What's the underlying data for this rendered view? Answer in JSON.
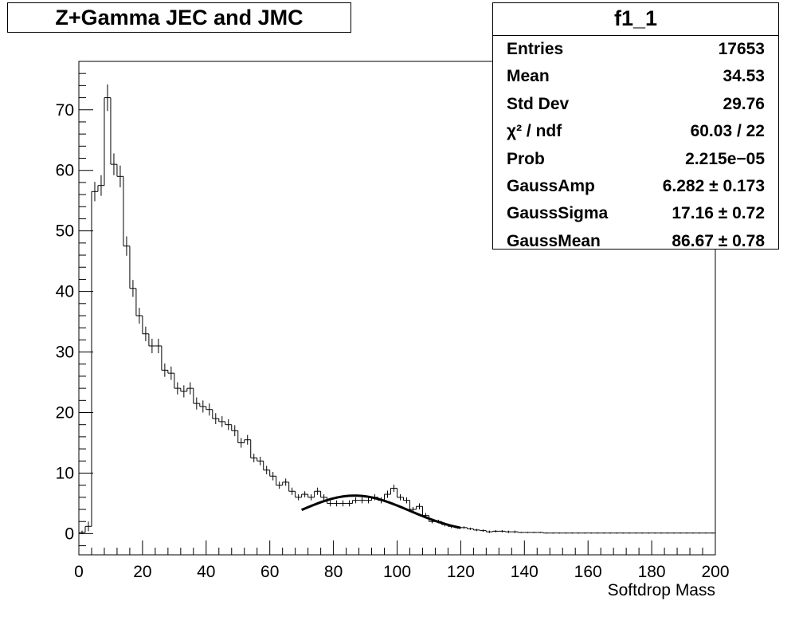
{
  "title": "Z+Gamma JEC and JMC",
  "stats_box": {
    "name": "f1_1",
    "rows": [
      {
        "label": "Entries",
        "value": "17653"
      },
      {
        "label": "Mean",
        "value": "34.53"
      },
      {
        "label": "Std Dev",
        "value": "29.76"
      },
      {
        "label": "χ² / ndf",
        "value": "60.03 / 22"
      },
      {
        "label": "Prob",
        "value": "2.215e−05"
      },
      {
        "label": "GaussAmp",
        "value": "6.282 ± 0.173"
      },
      {
        "label": "GaussSigma",
        "value": "17.16 ± 0.72"
      },
      {
        "label": "GaussMean",
        "value": "86.67 ± 0.78"
      }
    ]
  },
  "chart_data": {
    "type": "histogram",
    "title": "Z+Gamma JEC and JMC",
    "xlabel": "Softdrop Mass",
    "ylabel": "",
    "xlim": [
      0,
      200
    ],
    "ylim": [
      -3.5,
      78
    ],
    "bin_width": 2,
    "x_ticks": [
      0,
      20,
      40,
      60,
      80,
      100,
      120,
      140,
      160,
      180,
      200
    ],
    "y_ticks": [
      0,
      10,
      20,
      30,
      40,
      50,
      60,
      70
    ],
    "series": [
      {
        "name": "f1_1",
        "bin_edges_start": 0,
        "values": [
          0.2,
          1.2,
          56.5,
          57.5,
          72,
          61,
          59,
          47.5,
          40.5,
          36,
          33,
          31,
          31,
          27,
          26.5,
          24,
          23.5,
          24,
          21.5,
          21,
          20.5,
          19,
          18.5,
          18,
          17,
          15,
          15.5,
          12.5,
          12,
          10.5,
          9.5,
          8,
          8.5,
          7,
          6,
          6.5,
          6,
          7,
          6,
          5,
          5,
          5,
          5,
          5.5,
          5.5,
          5.5,
          6,
          5.5,
          6.5,
          7.5,
          6,
          5.5,
          4,
          4.5,
          3,
          2,
          2,
          1.5,
          1.2,
          1,
          1,
          0.8,
          0.6,
          0.5,
          0.3,
          0.4,
          0.4,
          0.3,
          0.3,
          0.2,
          0.2,
          0.2,
          0.2,
          0.1,
          0.1,
          0.1,
          0.1,
          0.1,
          0.1,
          0.1,
          0.1,
          0.1,
          0.1,
          0.1,
          0.1,
          0.1,
          0.1,
          0.1,
          0.1,
          0.1,
          0.1,
          0.1,
          0.1,
          0.1,
          0.1,
          0.1,
          0.1,
          0.1,
          0.1,
          0.1
        ],
        "errors": [
          0.3,
          0.8,
          1.6,
          1.7,
          2.2,
          1.8,
          1.8,
          1.6,
          1.4,
          1.3,
          1.2,
          1.2,
          1.2,
          1.1,
          1.1,
          1.0,
          1.0,
          1.0,
          1.0,
          1.0,
          1.0,
          0.9,
          0.9,
          0.9,
          0.9,
          0.8,
          0.8,
          0.7,
          0.7,
          0.7,
          0.7,
          0.6,
          0.6,
          0.6,
          0.5,
          0.5,
          0.5,
          0.6,
          0.5,
          0.5,
          0.5,
          0.5,
          0.5,
          0.5,
          0.5,
          0.5,
          0.5,
          0.5,
          0.6,
          0.6,
          0.5,
          0.5,
          0.4,
          0.5,
          0.4,
          0.3,
          0.3,
          0.3,
          0.3,
          0.2,
          0.2,
          0.2,
          0.2,
          0.2,
          0.2,
          0.2,
          0.2,
          0.2,
          0.2,
          0.1,
          0.1,
          0.1,
          0.1,
          0.1,
          0.1,
          0.1,
          0.1,
          0.1,
          0.1,
          0.1,
          0.1,
          0.1,
          0.1,
          0.1,
          0.1,
          0.1,
          0.1,
          0.1,
          0.1,
          0.1,
          0.1,
          0.1,
          0.1,
          0.1,
          0.1,
          0.1,
          0.1,
          0.1,
          0.1,
          0.1
        ]
      }
    ],
    "fit": {
      "function": "gaussian",
      "amplitude": 6.282,
      "mean": 86.67,
      "sigma": 17.16,
      "range": [
        70,
        120
      ]
    }
  }
}
